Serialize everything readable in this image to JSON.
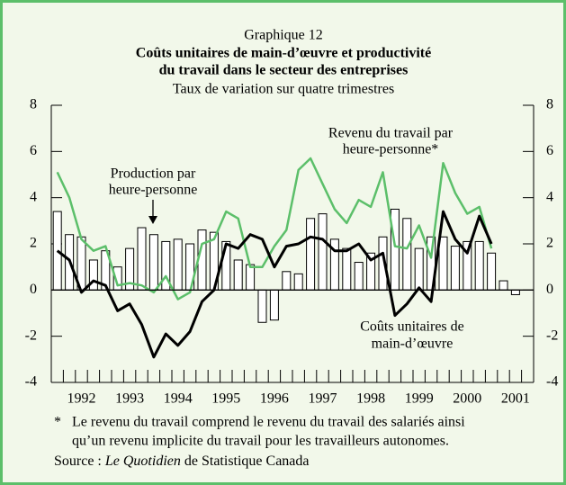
{
  "chart_data": {
    "type": "bar_line",
    "kicker": "Graphique 12",
    "title": [
      "Coûts unitaires de main-d’œuvre et productivité",
      "du travail dans le secteur des entreprises"
    ],
    "subtitle": "Taux de variation sur quatre trimestres",
    "categories": [
      null,
      null,
      "1992",
      null,
      null,
      null,
      "1993",
      null,
      null,
      null,
      "1994",
      null,
      null,
      null,
      "1995",
      null,
      null,
      null,
      "1996",
      null,
      null,
      null,
      "1997",
      null,
      null,
      null,
      "1998",
      null,
      null,
      null,
      "1999",
      null,
      null,
      null,
      "2000",
      null,
      null,
      null,
      "2001",
      null
    ],
    "series": [
      {
        "style": "bar",
        "color": "#ffffff",
        "values": [
          3.4,
          2.4,
          2.3,
          1.3,
          1.7,
          1.0,
          1.8,
          2.7,
          2.4,
          2.1,
          2.2,
          2.0,
          2.6,
          2.5,
          2.1,
          1.3,
          1.1,
          -1.4,
          -1.3,
          0.8,
          0.7,
          3.1,
          3.3,
          2.2,
          1.8,
          1.2,
          1.6,
          2.3,
          3.5,
          3.1,
          1.8,
          2.3,
          2.3,
          1.9,
          2.1,
          2.1,
          1.6,
          0.4,
          -0.2,
          null
        ]
      },
      {
        "style": "line",
        "color": "#5cbf6a",
        "values": [
          5.1,
          4.0,
          2.2,
          1.7,
          1.9,
          0.2,
          0.3,
          0.2,
          -0.1,
          0.6,
          -0.4,
          -0.1,
          2.0,
          2.2,
          3.4,
          3.1,
          1.0,
          1.0,
          1.9,
          2.6,
          5.2,
          5.7,
          4.6,
          3.5,
          2.9,
          3.9,
          3.6,
          5.1,
          1.9,
          1.8,
          2.8,
          1.4,
          5.5,
          4.2,
          3.3,
          3.6,
          1.8,
          null,
          null,
          null
        ]
      },
      {
        "style": "line",
        "color": "#000000",
        "values": [
          1.7,
          1.3,
          -0.1,
          0.4,
          0.2,
          -0.9,
          -0.6,
          -1.5,
          -2.9,
          -1.9,
          -2.4,
          -1.8,
          -0.5,
          0.0,
          2.0,
          1.8,
          2.4,
          2.2,
          1.0,
          1.9,
          2.0,
          2.3,
          2.2,
          1.7,
          1.7,
          2.0,
          1.3,
          1.6,
          -1.1,
          -0.6,
          0.1,
          -0.5,
          3.4,
          2.2,
          1.6,
          3.2,
          2.0,
          null,
          null,
          null
        ]
      }
    ],
    "ylim": [
      -4,
      8
    ],
    "yticks": [
      -4,
      -2,
      0,
      2,
      4,
      6,
      8
    ],
    "y2lim": [
      -4,
      8
    ],
    "y2ticks": [
      -4,
      -2,
      0,
      2,
      4,
      6,
      8
    ],
    "annotations": {
      "wages": [
        "Revenu du travail par",
        "heure-personne*"
      ],
      "productivity": [
        "Production par",
        "heure-personne"
      ],
      "costs": [
        "Coûts unitaires de",
        "main-d’œuvre"
      ]
    },
    "footnote": {
      "mark": "*",
      "lines": [
        "Le revenu du travail comprend le revenu du travail des salariés ainsi",
        "qu’un revenu implicite du travail pour les travailleurs autonomes."
      ]
    },
    "source": {
      "prefix": "Source :",
      "italic": "Le Quotidien",
      "suffix": "de Statistique Canada"
    }
  }
}
